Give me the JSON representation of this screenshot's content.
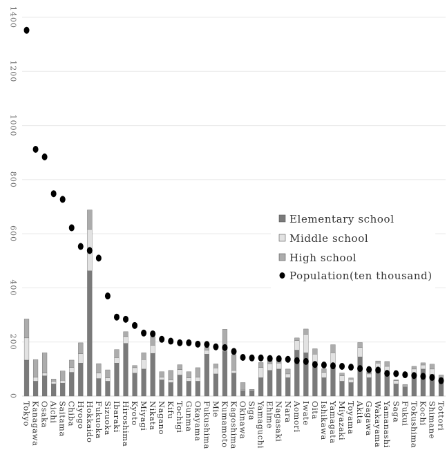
{
  "chart_data": {
    "type": "bar",
    "stacked": true,
    "categories": [
      "Tokyo",
      "Kanagawa",
      "Osaka",
      "Aichi",
      "Saitama",
      "Chiba",
      "Hyogo",
      "Hokkaido",
      "Fukuoka",
      "Sizuoka",
      "Ibaraki",
      "Hiroshima",
      "Kyoto",
      "Miyagi",
      "Nikata",
      "Nagano",
      "Kifu",
      "Tochigi",
      "Gunma",
      "Okayama",
      "Fukushima",
      "Mie",
      "Kumamoto",
      "Kagoshima",
      "Okinawa",
      "Siga",
      "Yamaguchi",
      "Ehime",
      "Nagasaki",
      "Nara",
      "Aomori",
      "Iwate",
      "Oita",
      "Ishikawa",
      "Yamagata",
      "Miyazaki",
      "Toyama",
      "Akita",
      "Gagawa",
      "Wakayama",
      "Yamanashi",
      "Saga",
      "Fukui",
      "Tokushima",
      "Kochi",
      "Shimane",
      "Tottori"
    ],
    "series": [
      {
        "name": "Elementary school",
        "color": "#7a7a7a",
        "values": [
          133,
          55,
          75,
          45,
          48,
          88,
          122,
          463,
          65,
          55,
          122,
          195,
          85,
          100,
          158,
          60,
          50,
          78,
          55,
          55,
          155,
          82,
          165,
          85,
          20,
          18,
          68,
          95,
          100,
          68,
          170,
          160,
          120,
          68,
          115,
          55,
          50,
          145,
          68,
          100,
          75,
          45,
          35,
          78,
          100,
          80,
          58
        ]
      },
      {
        "name": "Middle school",
        "color": "#e2e2e2",
        "values": [
          82,
          15,
          10,
          10,
          10,
          18,
          35,
          153,
          20,
          12,
          20,
          25,
          20,
          35,
          30,
          10,
          10,
          20,
          12,
          15,
          15,
          22,
          20,
          10,
          3,
          2,
          38,
          25,
          22,
          14,
          35,
          68,
          35,
          20,
          45,
          20,
          12,
          35,
          14,
          22,
          35,
          12,
          5,
          22,
          15,
          20,
          10
        ]
      },
      {
        "name": "High school",
        "color": "#acacac",
        "values": [
          70,
          65,
          75,
          8,
          35,
          27,
          40,
          72,
          35,
          30,
          30,
          18,
          8,
          25,
          32,
          20,
          35,
          18,
          23,
          35,
          10,
          15,
          62,
          58,
          27,
          5,
          18,
          20,
          18,
          18,
          10,
          20,
          20,
          13,
          30,
          10,
          5,
          18,
          8,
          8,
          18,
          3,
          3,
          10,
          8,
          18,
          10
        ]
      }
    ],
    "population_series": {
      "name": "Population(ten thousand)",
      "color": "#000000",
      "values": [
        1352,
        912,
        884,
        748,
        727,
        622,
        553,
        538,
        510,
        370,
        292,
        284,
        261,
        233,
        230,
        210,
        203,
        197,
        197,
        192,
        191,
        182,
        179,
        165,
        143,
        141,
        141,
        139,
        138,
        136,
        131,
        128,
        117,
        115,
        112,
        110,
        107,
        102,
        98,
        96,
        84,
        83,
        79,
        76,
        73,
        69,
        57
      ]
    },
    "ylim": [
      0,
      1400
    ],
    "yticks": [
      0,
      200,
      400,
      600,
      800,
      1000,
      1200,
      1400
    ],
    "ytick_labels": [
      "0",
      "200",
      "400",
      "600",
      "800",
      "1000",
      "1200",
      "1400"
    ],
    "grid": true,
    "legend_position": "right"
  }
}
